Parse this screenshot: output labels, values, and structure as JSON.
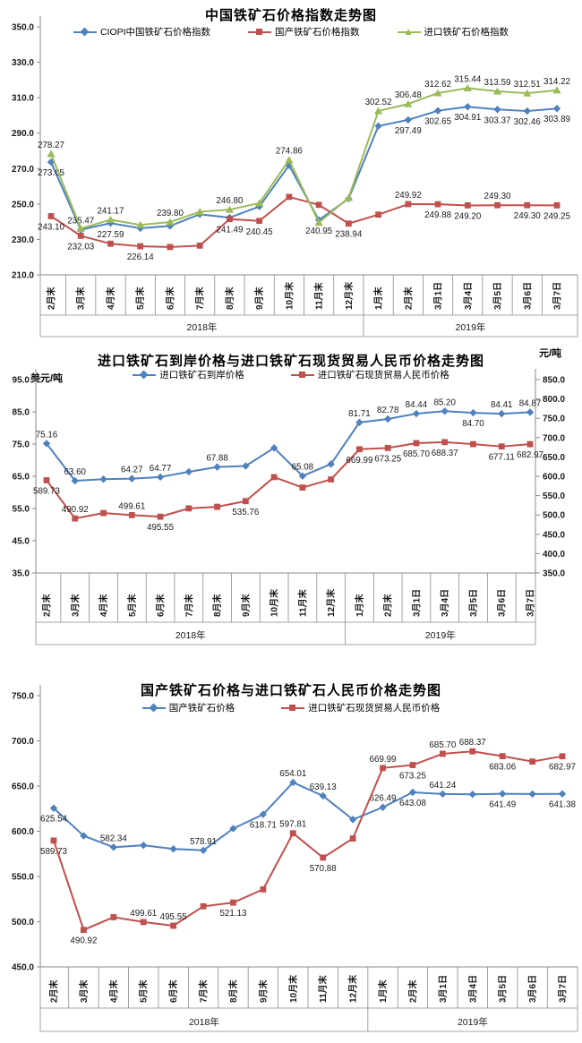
{
  "chart_data": [
    {
      "type": "line",
      "title": "中国铁矿石价格指数走势图",
      "y_axis": {
        "min": 210,
        "max": 350,
        "step": 20
      },
      "categories": [
        "2月末",
        "3月末",
        "4月末",
        "5月末",
        "6月末",
        "7月末",
        "8月末",
        "9月末",
        "10月末",
        "11月末",
        "12月末",
        "1月末",
        "2月末",
        "3月1日",
        "3月4日",
        "3月5日",
        "3月6日",
        "3月7日"
      ],
      "groups": [
        {
          "label": "2018年",
          "count": 11
        },
        {
          "label": "2019年",
          "count": 7
        }
      ],
      "series": [
        {
          "name": "CIOPI中国铁矿石价格指数",
          "color": "#4F81BD",
          "marker": "diamond",
          "values": [
            273.65,
            235.47,
            239.2,
            236.3,
            237.6,
            244.2,
            242.3,
            248.6,
            271.8,
            240.95,
            253.0,
            294.0,
            297.49,
            302.65,
            304.91,
            303.37,
            302.46,
            303.89
          ],
          "labels": [
            "273.65",
            "235.47",
            null,
            null,
            null,
            null,
            null,
            null,
            null,
            "240.95",
            null,
            null,
            "297.49",
            "302.65",
            "304.91",
            "303.37",
            "302.46",
            "303.89"
          ],
          "label_pos": [
            "b",
            "a",
            null,
            null,
            null,
            null,
            null,
            null,
            null,
            "b",
            null,
            null,
            "b",
            "b",
            "b",
            "b",
            "b",
            "b"
          ]
        },
        {
          "name": "国产铁矿石价格指数",
          "color": "#C0504D",
          "marker": "square",
          "values": [
            243.1,
            232.03,
            227.59,
            226.14,
            225.7,
            226.5,
            241.49,
            240.45,
            254.0,
            249.5,
            238.94,
            244.0,
            249.92,
            249.88,
            249.2,
            249.3,
            249.3,
            249.25
          ],
          "labels": [
            "243.10",
            "232.03",
            "227.59",
            "226.14",
            null,
            null,
            "241.49",
            "240.45",
            null,
            null,
            "238.94",
            null,
            "249.92",
            "249.88",
            "249.20",
            "249.30",
            "249.30",
            "249.25"
          ],
          "label_pos": [
            "b",
            "b",
            "a",
            "b",
            null,
            null,
            "b",
            "b",
            null,
            null,
            "b",
            null,
            "a",
            "b",
            "b",
            "a",
            "b",
            "b"
          ]
        },
        {
          "name": "进口铁矿石价格指数",
          "color": "#9BBB59",
          "marker": "triangle",
          "values": [
            278.27,
            236.1,
            241.17,
            238.2,
            239.8,
            245.6,
            246.8,
            250.5,
            274.86,
            239.5,
            253.5,
            302.52,
            306.48,
            312.62,
            315.44,
            313.59,
            312.51,
            314.22
          ],
          "labels": [
            "278.27",
            null,
            "241.17",
            null,
            "239.80",
            null,
            "246.80",
            null,
            "274.86",
            null,
            null,
            "302.52",
            "306.48",
            "312.62",
            "315.44",
            "313.59",
            "312.51",
            "314.22"
          ],
          "label_pos": [
            "a",
            null,
            "a",
            null,
            "a",
            null,
            "a",
            null,
            "a",
            null,
            null,
            "a",
            "a",
            "a",
            "a",
            "a",
            "a",
            "a"
          ]
        }
      ]
    },
    {
      "type": "line",
      "title": "进口铁矿石到岸价格与进口铁矿石现货贸易人民币价格走势图",
      "left_axis": {
        "label": "美元/吨",
        "min": 35,
        "max": 95,
        "step": 10
      },
      "right_axis": {
        "label": "元/吨",
        "min": 350,
        "max": 850,
        "step": 50
      },
      "categories": [
        "2月末",
        "3月末",
        "4月末",
        "5月末",
        "6月末",
        "7月末",
        "8月末",
        "9月末",
        "10月末",
        "11月末",
        "12月末",
        "1月末",
        "2月末",
        "3月1日",
        "3月4日",
        "3月5日",
        "3月6日",
        "3月7日"
      ],
      "groups": [
        {
          "label": "2018年",
          "count": 11
        },
        {
          "label": "2019年",
          "count": 7
        }
      ],
      "series": [
        {
          "name": "进口铁矿石到岸价格",
          "color": "#4F81BD",
          "marker": "diamond",
          "axis": "left",
          "values": [
            75.16,
            63.6,
            64.1,
            64.27,
            64.77,
            66.4,
            67.88,
            68.2,
            73.8,
            65.08,
            68.8,
            81.71,
            82.78,
            84.44,
            85.2,
            84.7,
            84.41,
            84.87
          ],
          "labels": [
            "75.16",
            "63.60",
            null,
            "64.27",
            "64.77",
            null,
            "67.88",
            null,
            null,
            "65.08",
            null,
            "81.71",
            "82.78",
            "84.44",
            "85.20",
            "84.70",
            "84.41",
            "84.87"
          ],
          "label_pos": [
            "a",
            "a",
            null,
            "a",
            "a",
            null,
            "a",
            null,
            null,
            "a",
            null,
            "a",
            "a",
            "a",
            "a",
            "b",
            "a",
            "a"
          ]
        },
        {
          "name": "进口铁矿石现货贸易人民币价格",
          "color": "#C0504D",
          "marker": "square",
          "axis": "right",
          "values": [
            589.73,
            490.92,
            505.0,
            499.61,
            495.55,
            517.0,
            521.13,
            535.76,
            597.81,
            570.88,
            592.0,
            669.99,
            673.25,
            685.7,
            688.37,
            683.06,
            677.11,
            682.97
          ],
          "labels": [
            "589.73",
            "490.92",
            null,
            "499.61",
            "495.55",
            null,
            null,
            "535.76",
            null,
            null,
            null,
            "669.99",
            "673.25",
            "685.70",
            "688.37",
            null,
            "677.11",
            "682.97"
          ],
          "label_pos": [
            "b",
            "a",
            null,
            "a",
            "b",
            null,
            null,
            "b",
            null,
            null,
            null,
            "b",
            "b",
            "b",
            "b",
            null,
            "b",
            "b"
          ]
        }
      ]
    },
    {
      "type": "line",
      "title": "国产铁矿石价格与进口铁矿石人民币价格走势图",
      "y_axis": {
        "min": 450,
        "max": 750,
        "step": 50
      },
      "categories": [
        "2月末",
        "3月末",
        "4月末",
        "5月末",
        "6月末",
        "7月末",
        "8月末",
        "9月末",
        "10月末",
        "11月末",
        "12月末",
        "1月末",
        "2月末",
        "3月1日",
        "3月4日",
        "3月5日",
        "3月6日",
        "3月7日"
      ],
      "groups": [
        {
          "label": "2018年",
          "count": 11
        },
        {
          "label": "2019年",
          "count": 7
        }
      ],
      "series": [
        {
          "name": "国产铁矿石价格",
          "color": "#4F81BD",
          "marker": "diamond",
          "values": [
            625.54,
            595.0,
            582.34,
            584.5,
            580.5,
            578.91,
            603.0,
            618.71,
            654.01,
            639.13,
            613.0,
            626.49,
            643.08,
            641.24,
            640.8,
            641.49,
            641.2,
            641.38
          ],
          "labels": [
            "625.54",
            null,
            "582.34",
            null,
            null,
            "578.91",
            null,
            "618.71",
            "654.01",
            "639.13",
            null,
            "626.49",
            "643.08",
            "641.24",
            null,
            "641.49",
            null,
            "641.38"
          ],
          "label_pos": [
            "b",
            null,
            "a",
            null,
            null,
            "a",
            null,
            "b",
            "a",
            "a",
            null,
            "a",
            "b",
            "a",
            null,
            "b",
            null,
            "b"
          ]
        },
        {
          "name": "进口铁矿石现货贸易人民币价格",
          "color": "#C0504D",
          "marker": "square",
          "values": [
            589.73,
            490.92,
            505.0,
            499.61,
            495.55,
            517.0,
            521.13,
            535.76,
            597.81,
            570.88,
            592.0,
            669.99,
            673.25,
            685.7,
            688.37,
            683.06,
            677.11,
            682.97
          ],
          "labels": [
            "589.73",
            "490.92",
            null,
            "499.61",
            "495.55",
            null,
            "521.13",
            null,
            "597.81",
            "570.88",
            null,
            "669.99",
            "673.25",
            "685.70",
            "688.37",
            "683.06",
            null,
            "682.97"
          ],
          "label_pos": [
            "b",
            "b",
            null,
            "a",
            "a",
            null,
            "b",
            null,
            "a",
            "b",
            null,
            "a",
            "b",
            "a",
            "a",
            "b",
            null,
            "b"
          ]
        }
      ]
    }
  ]
}
